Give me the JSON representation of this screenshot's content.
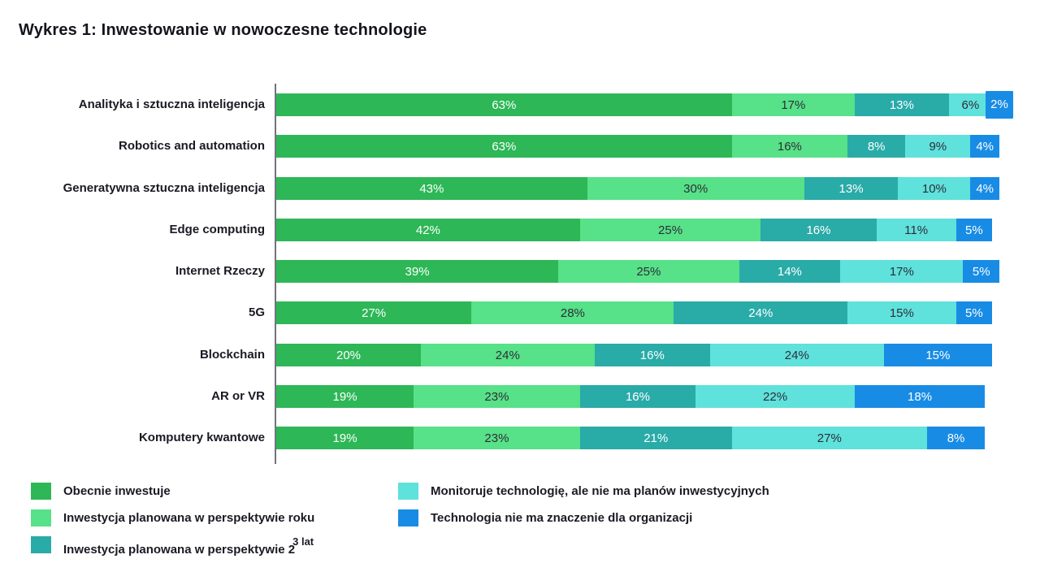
{
  "title": "Wykres 1: Inwestowanie w nowoczesne technologie",
  "colors": {
    "green": "#2DB757",
    "light_green": "#57E188",
    "teal": "#29ABA8",
    "light_cyan": "#5FE1DC",
    "blue": "#188CE5",
    "text_dark": "#1a1a24",
    "label_dark": "#2E2E38",
    "label_light": "#FFFFFF",
    "axis": "#73737e"
  },
  "chart_data": {
    "type": "bar",
    "orientation": "horizontal",
    "stacked": true,
    "value_suffix": "%",
    "xlim": [
      0,
      101
    ],
    "grid": false,
    "legend_position": "bottom",
    "categories": [
      "Analityka i sztuczna inteligencja",
      "Robotics and automation",
      "Generatywna sztuczna inteligencja",
      "Edge computing",
      "Internet Rzeczy",
      "5G",
      "Blockchain",
      "AR or VR",
      "Komputery kwantowe"
    ],
    "series": [
      {
        "name": "Obecnie inwestuje",
        "color": "#2DB757",
        "label_color": "#FFFFFF",
        "values": [
          63,
          63,
          43,
          42,
          39,
          27,
          20,
          19,
          19
        ]
      },
      {
        "name": "Inwestycja planowana w perspektywie roku",
        "color": "#57E188",
        "label_color": "#2E2E38",
        "values": [
          17,
          16,
          30,
          25,
          25,
          28,
          24,
          23,
          23
        ]
      },
      {
        "name": "Inwestycja planowana w perspektywie 2-3 lat",
        "color": "#29ABA8",
        "label_color": "#FFFFFF",
        "values": [
          13,
          8,
          13,
          16,
          14,
          24,
          16,
          16,
          21
        ]
      },
      {
        "name": "Monitoruje technologię, ale nie ma planów inwestycyjnych",
        "color": "#5FE1DC",
        "label_color": "#2E2E38",
        "values": [
          6,
          9,
          10,
          11,
          17,
          15,
          24,
          22,
          27
        ]
      },
      {
        "name": "Technologia nie ma znaczenie dla organizacji",
        "color": "#188CE5",
        "label_color": "#FFFFFF",
        "values": [
          2,
          4,
          4,
          5,
          5,
          5,
          15,
          18,
          8
        ]
      }
    ]
  },
  "legend": {
    "items": [
      {
        "label": "Obecnie inwestuje",
        "color": "#2DB757"
      },
      {
        "label": "Inwestycja planowana w perspektywie roku",
        "color": "#57E188"
      },
      {
        "label": "Inwestycja planowana w perspektywie 2",
        "sup": "3 lat",
        "color": "#29ABA8"
      },
      {
        "label": "Monitoruje technologię, ale nie ma planów inwestycyjnych",
        "color": "#5FE1DC"
      },
      {
        "label": "Technologia nie ma znaczenie dla organizacji",
        "color": "#188CE5"
      }
    ]
  }
}
